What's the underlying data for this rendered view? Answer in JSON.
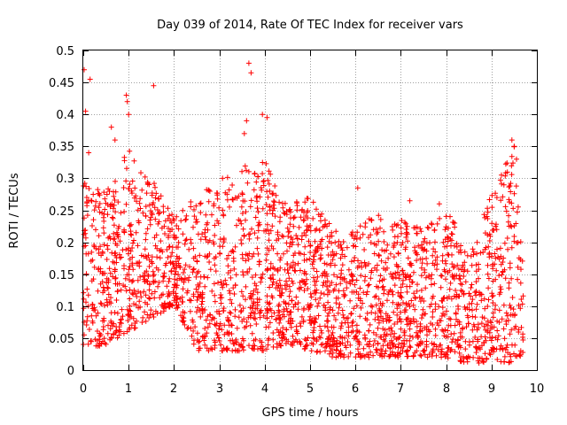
{
  "chart_data": {
    "type": "scatter",
    "title": "Day 039 of 2014, Rate Of TEC Index for receiver vars",
    "xlabel": "GPS time / hours",
    "ylabel": "ROTI / TECUs",
    "xlim": [
      0,
      10
    ],
    "ylim": [
      0,
      0.5
    ],
    "xticks": [
      "0",
      "1",
      "2",
      "3",
      "4",
      "5",
      "6",
      "7",
      "8",
      "9",
      "10"
    ],
    "yticks": [
      "0",
      "0.05",
      "0.1",
      "0.15",
      "0.2",
      "0.25",
      "0.3",
      "0.35",
      "0.4",
      "0.45",
      "0.5"
    ],
    "grid": true,
    "marker": "+",
    "color": "#ff0000",
    "x_extent": [
      0,
      9.7
    ],
    "density_profile": [
      {
        "x": 0.0,
        "min": 0.03,
        "max": 0.3
      },
      {
        "x": 0.5,
        "min": 0.04,
        "max": 0.28
      },
      {
        "x": 1.0,
        "min": 0.06,
        "max": 0.35
      },
      {
        "x": 1.5,
        "min": 0.08,
        "max": 0.3
      },
      {
        "x": 2.0,
        "min": 0.1,
        "max": 0.24
      },
      {
        "x": 2.5,
        "min": 0.03,
        "max": 0.28
      },
      {
        "x": 3.0,
        "min": 0.03,
        "max": 0.3
      },
      {
        "x": 3.5,
        "min": 0.03,
        "max": 0.32
      },
      {
        "x": 4.0,
        "min": 0.03,
        "max": 0.33
      },
      {
        "x": 4.5,
        "min": 0.04,
        "max": 0.26
      },
      {
        "x": 5.0,
        "min": 0.03,
        "max": 0.28
      },
      {
        "x": 5.5,
        "min": 0.02,
        "max": 0.22
      },
      {
        "x": 6.0,
        "min": 0.02,
        "max": 0.22
      },
      {
        "x": 6.5,
        "min": 0.02,
        "max": 0.25
      },
      {
        "x": 7.0,
        "min": 0.02,
        "max": 0.24
      },
      {
        "x": 7.5,
        "min": 0.02,
        "max": 0.22
      },
      {
        "x": 8.0,
        "min": 0.02,
        "max": 0.26
      },
      {
        "x": 8.5,
        "min": 0.01,
        "max": 0.18
      },
      {
        "x": 9.0,
        "min": 0.01,
        "max": 0.28
      },
      {
        "x": 9.5,
        "min": 0.01,
        "max": 0.35
      },
      {
        "x": 9.7,
        "min": 0.02,
        "max": 0.17
      }
    ],
    "outliers": [
      {
        "x": 0.02,
        "y": 0.47
      },
      {
        "x": 0.05,
        "y": 0.405
      },
      {
        "x": 0.15,
        "y": 0.455
      },
      {
        "x": 0.12,
        "y": 0.34
      },
      {
        "x": 0.95,
        "y": 0.43
      },
      {
        "x": 0.97,
        "y": 0.42
      },
      {
        "x": 1.0,
        "y": 0.4
      },
      {
        "x": 0.62,
        "y": 0.38
      },
      {
        "x": 0.7,
        "y": 0.36
      },
      {
        "x": 1.55,
        "y": 0.445
      },
      {
        "x": 3.65,
        "y": 0.48
      },
      {
        "x": 3.7,
        "y": 0.465
      },
      {
        "x": 3.6,
        "y": 0.39
      },
      {
        "x": 3.95,
        "y": 0.4
      },
      {
        "x": 4.05,
        "y": 0.395
      },
      {
        "x": 3.55,
        "y": 0.37
      },
      {
        "x": 9.45,
        "y": 0.36
      },
      {
        "x": 9.5,
        "y": 0.35
      },
      {
        "x": 9.55,
        "y": 0.33
      },
      {
        "x": 6.05,
        "y": 0.285
      },
      {
        "x": 7.2,
        "y": 0.265
      },
      {
        "x": 7.85,
        "y": 0.26
      }
    ]
  }
}
